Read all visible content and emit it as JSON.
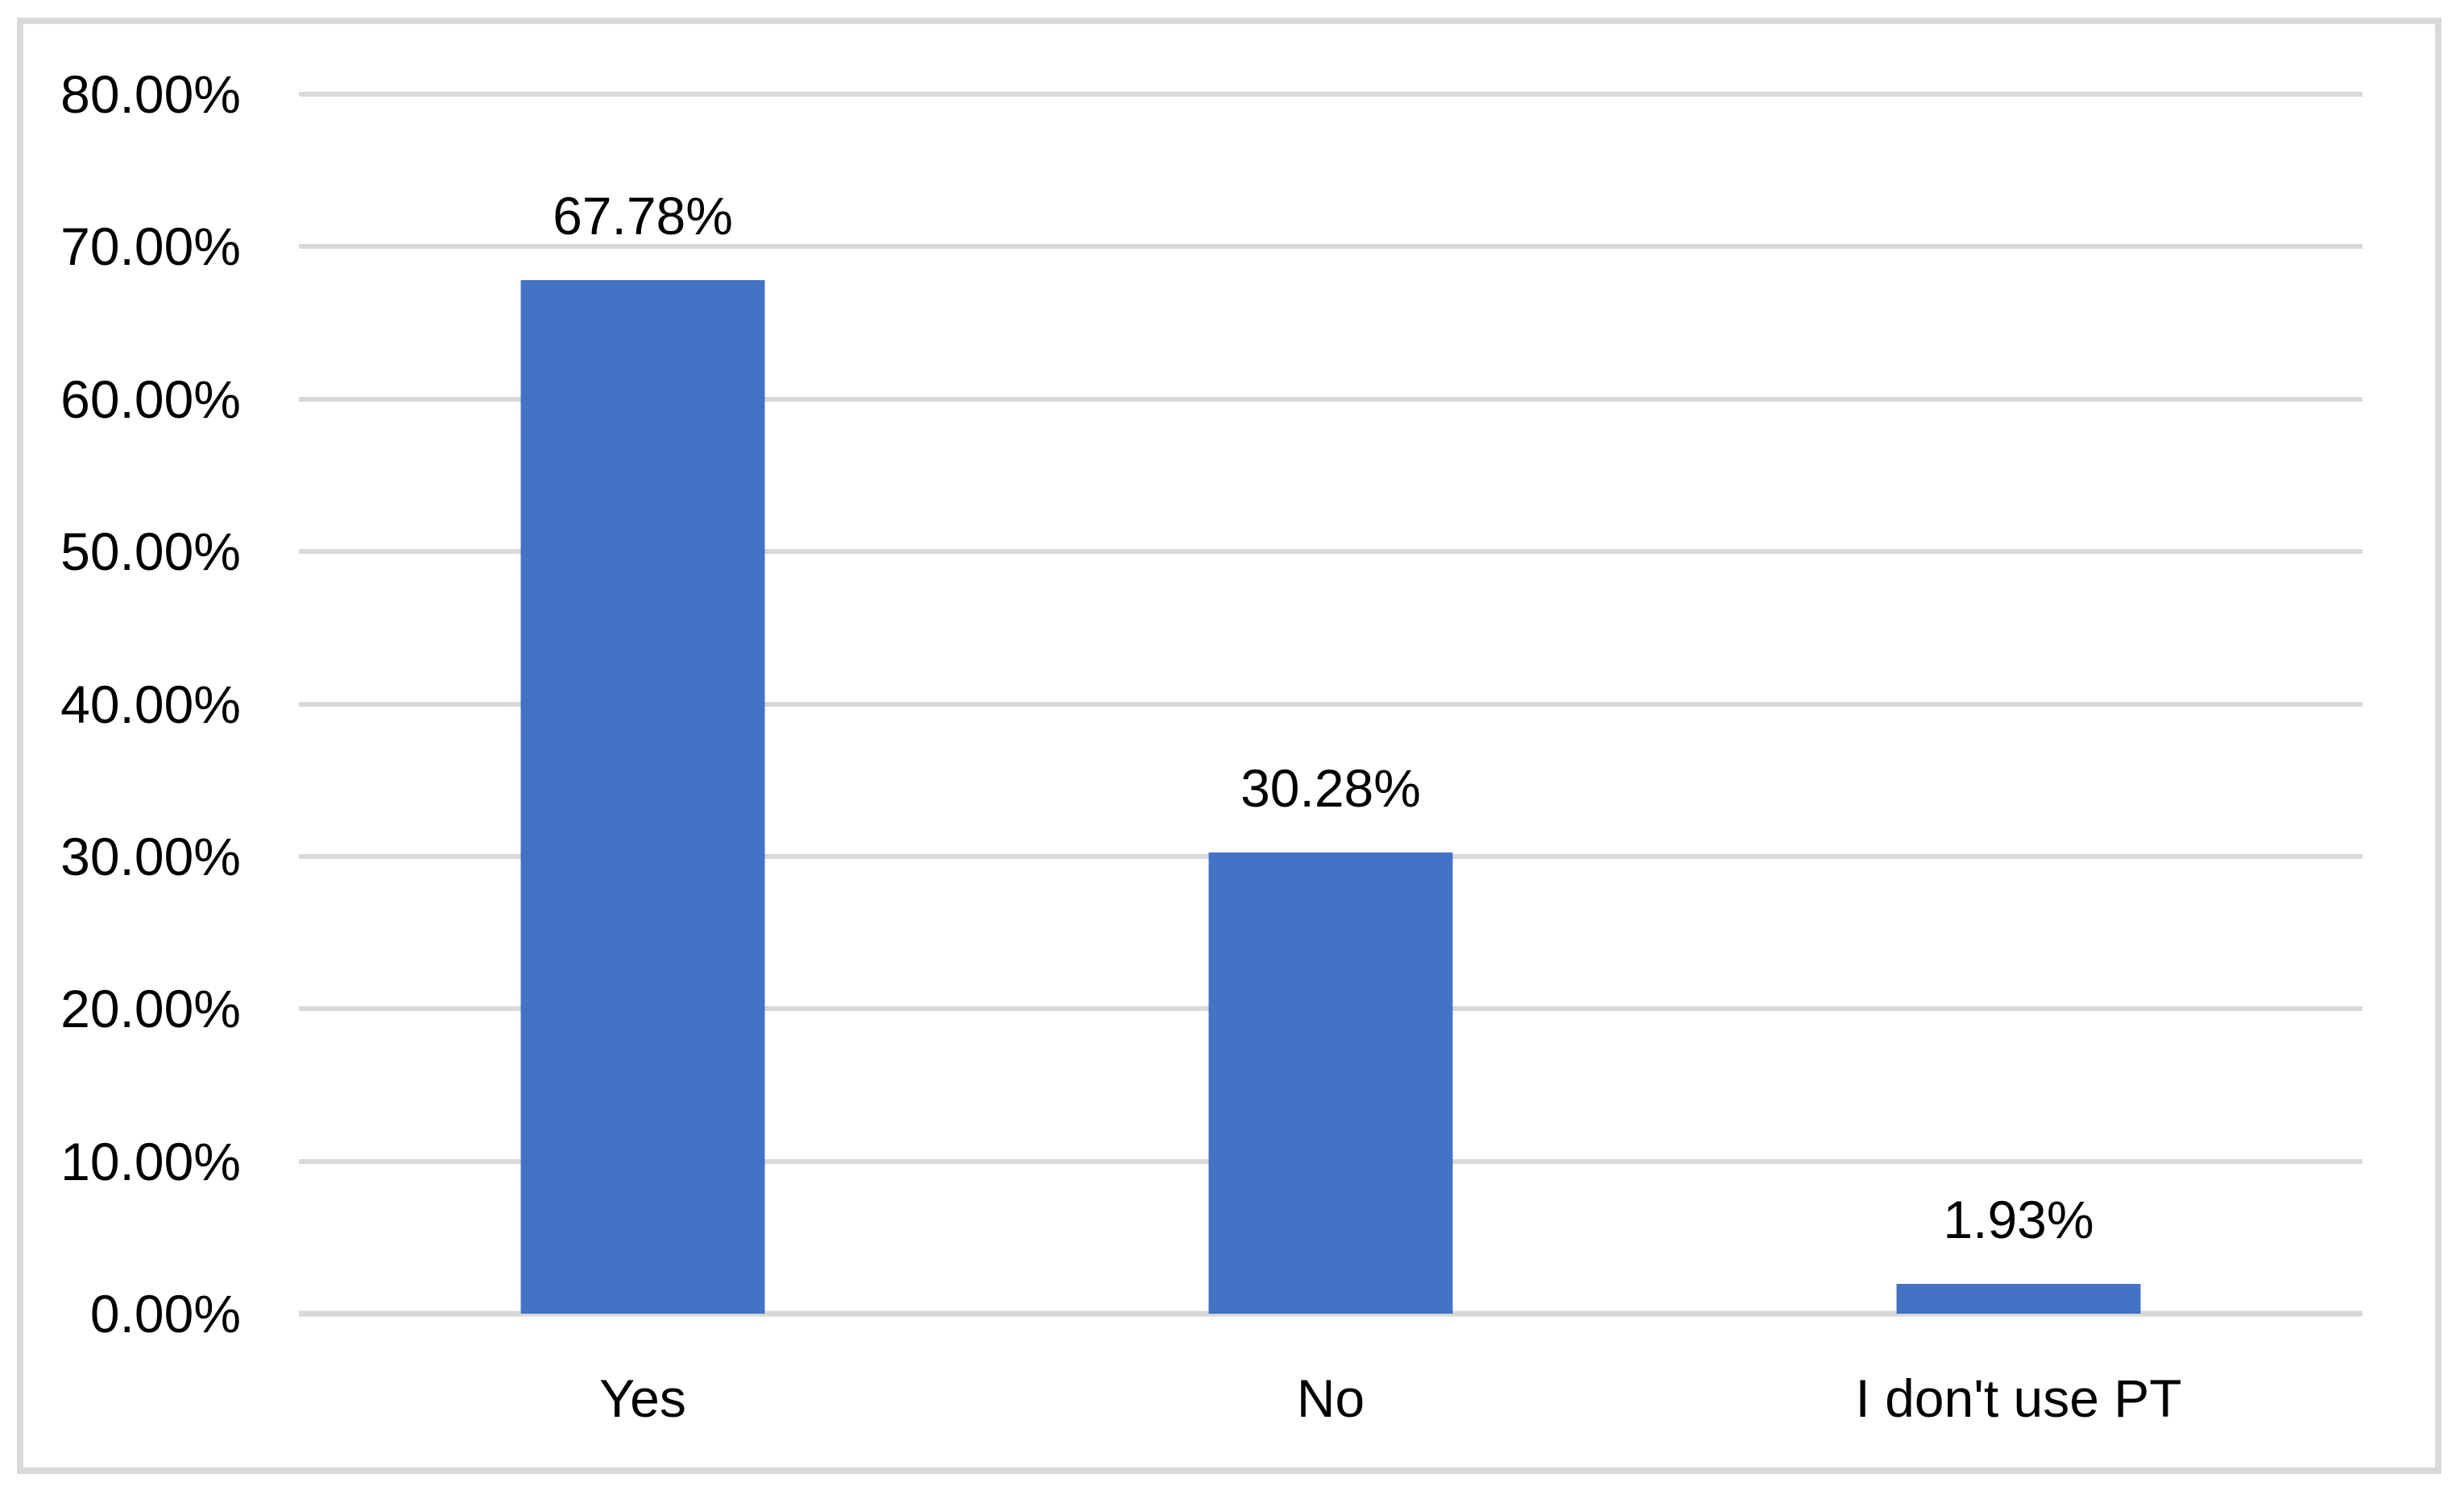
{
  "chart_data": {
    "type": "bar",
    "title": "",
    "xlabel": "",
    "ylabel": "",
    "categories": [
      "Yes",
      "No",
      "I don't use PT"
    ],
    "values": [
      67.78,
      30.28,
      1.93
    ],
    "value_labels": [
      "67.78%",
      "30.28%",
      "1.93%"
    ],
    "ylim": [
      0,
      80
    ],
    "y_ticks": [
      {
        "value": 0,
        "label": "0.00%"
      },
      {
        "value": 10,
        "label": "10.00%"
      },
      {
        "value": 20,
        "label": "20.00%"
      },
      {
        "value": 30,
        "label": "30.00%"
      },
      {
        "value": 40,
        "label": "40.00%"
      },
      {
        "value": 50,
        "label": "50.00%"
      },
      {
        "value": 60,
        "label": "60.00%"
      },
      {
        "value": 70,
        "label": "70.00%"
      },
      {
        "value": 80,
        "label": "80.00%"
      }
    ],
    "grid": true,
    "legend": false,
    "colors": {
      "bar": "#4472C4",
      "gridline": "#D9D9D9",
      "axis_line": "#D9D9D9",
      "frame_border": "#D9D9D9",
      "text": "#000000",
      "background": "#FFFFFF"
    }
  }
}
